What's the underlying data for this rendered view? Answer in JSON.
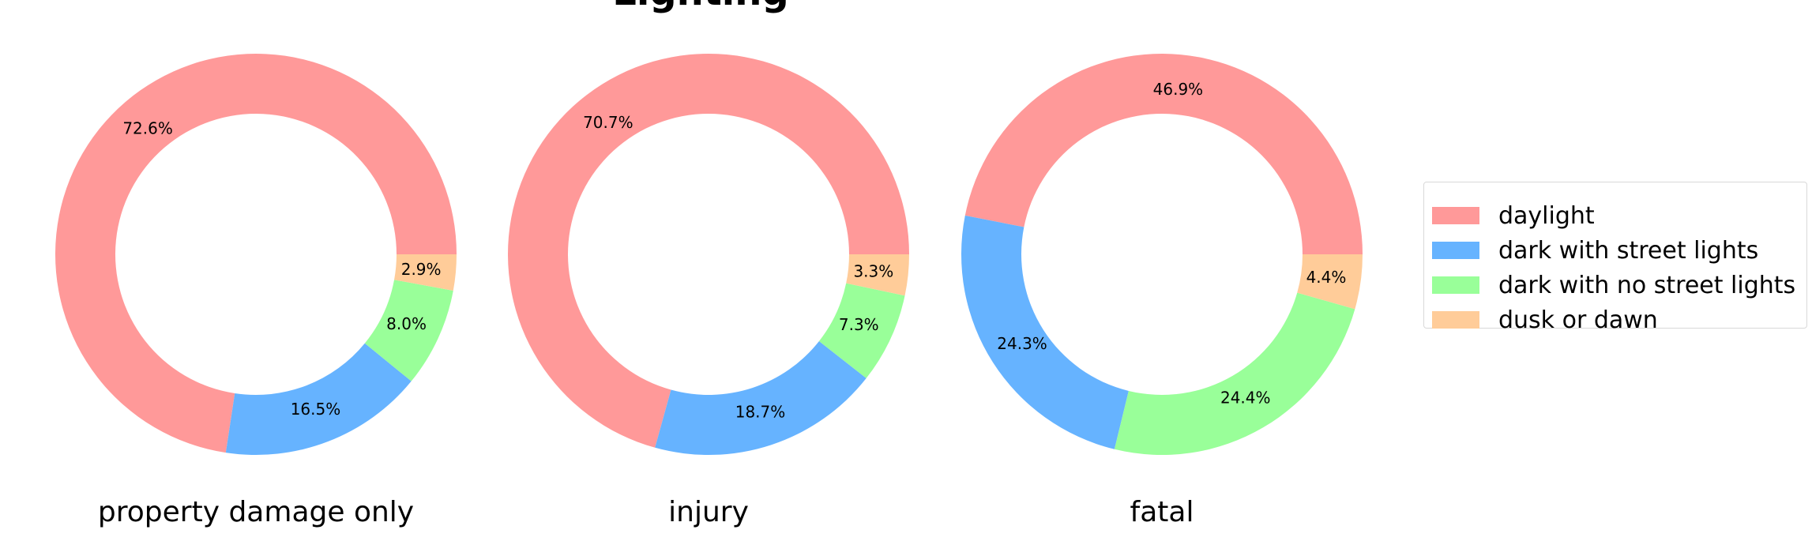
{
  "chart_data": {
    "type": "pie",
    "title": "Lighting",
    "categories": [
      "daylight",
      "dark with street lights",
      "dark with no street lights",
      "dusk or dawn"
    ],
    "colors": [
      "#ff9999",
      "#66b3ff",
      "#99ff99",
      "#ffcc99"
    ],
    "charts": [
      {
        "label": "property damage only",
        "values": [
          72.6,
          16.5,
          8.0,
          2.9
        ],
        "labels": [
          "72.6%",
          "16.5%",
          "8.0%",
          "2.9%"
        ]
      },
      {
        "label": "injury",
        "values": [
          70.7,
          18.7,
          7.3,
          3.3
        ],
        "labels": [
          "70.7%",
          "18.7%",
          "7.3%",
          "3.3%"
        ]
      },
      {
        "label": "fatal",
        "values": [
          46.9,
          24.3,
          24.4,
          4.4
        ],
        "labels": [
          "46.9%",
          "24.3%",
          "24.4%",
          "4.4%"
        ]
      }
    ],
    "legend": {
      "placement": "right"
    }
  }
}
